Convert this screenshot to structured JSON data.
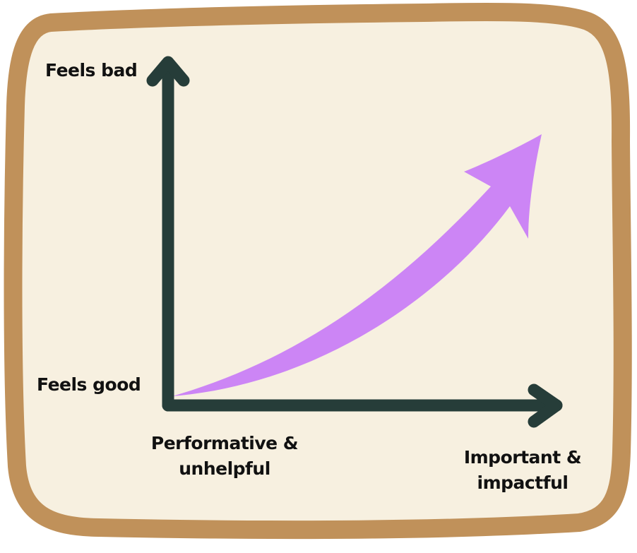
{
  "colors": {
    "frame_border": "#C0915A",
    "frame_fill": "#F7F0E0",
    "axis": "#263D39",
    "trend_arrow": "#CC85F5"
  },
  "labels": {
    "y_top": "Feels bad",
    "y_bottom": "Feels good",
    "x_left_line1": "Performative &",
    "x_left_line2": "unhelpful",
    "x_right_line1": "Important &",
    "x_right_line2": "impactful"
  },
  "icons": {
    "y_axis_head": "arrow-up-icon",
    "x_axis_head": "arrow-right-icon",
    "trend": "curved-arrow-icon"
  }
}
